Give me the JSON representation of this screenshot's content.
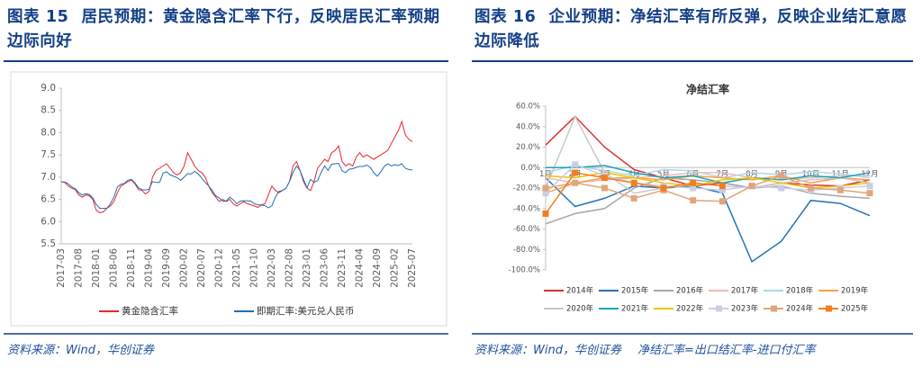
{
  "panels": [
    {
      "figure_label": "图表 15",
      "title": "居民预期：黄金隐含汇率下行，反映居民汇率预期边际向好",
      "source": "资料来源：Wind，华创证券"
    },
    {
      "figure_label": "图表 16",
      "title": "企业预期：净结汇率有所反弹，反映企业结汇意愿边际降低",
      "source": "资料来源：Wind，华创证券",
      "note": "净结汇率=出口结汇率-进口付汇率"
    }
  ],
  "chart_data": [
    {
      "type": "line",
      "categories": [
        "2017-03",
        null,
        null,
        null,
        null,
        "2017-08",
        null,
        null,
        null,
        null,
        "2018-01",
        null,
        null,
        null,
        null,
        "2018-06",
        null,
        null,
        null,
        null,
        "2018-11",
        null,
        null,
        null,
        null,
        "2019-04",
        null,
        null,
        null,
        null,
        "2019-09",
        null,
        null,
        null,
        null,
        "2020-02",
        null,
        null,
        null,
        null,
        "2020-07",
        null,
        null,
        null,
        null,
        "2020-12",
        null,
        null,
        null,
        null,
        "2021-05",
        null,
        null,
        null,
        null,
        "2021-10",
        null,
        null,
        null,
        null,
        "2022-03",
        null,
        null,
        null,
        null,
        "2022-08",
        null,
        null,
        null,
        null,
        "2023-01",
        null,
        null,
        null,
        null,
        "2023-06",
        null,
        null,
        null,
        null,
        "2023-11",
        null,
        null,
        null,
        null,
        "2024-04",
        null,
        null,
        null,
        null,
        "2024-09",
        null,
        null,
        null,
        null,
        "2025-02",
        null,
        null,
        null,
        null,
        "2025-07"
      ],
      "ylim": [
        5.5,
        9.0
      ],
      "yticks": [
        5.5,
        {
          "value": 6,
          "label": "6.0"
        },
        6.5,
        {
          "value": 7,
          "label": "7.0"
        },
        7.5,
        {
          "value": 8,
          "label": "8.0"
        },
        8.5,
        {
          "value": 9,
          "label": "9.0"
        }
      ],
      "series": [
        {
          "name": "黄金隐含汇率",
          "color": "#e8262a",
          "values": [
            6.9,
            6.88,
            6.8,
            6.75,
            6.72,
            6.6,
            6.55,
            6.6,
            6.58,
            6.5,
            6.25,
            6.2,
            6.22,
            6.3,
            6.35,
            6.45,
            6.65,
            6.8,
            6.85,
            6.9,
            6.93,
            6.85,
            6.72,
            6.7,
            6.62,
            6.68,
            7.0,
            7.15,
            7.2,
            7.25,
            7.3,
            7.2,
            7.1,
            7.05,
            7.1,
            7.25,
            7.55,
            7.4,
            7.25,
            7.15,
            7.1,
            7.0,
            6.8,
            6.65,
            6.55,
            6.45,
            6.5,
            6.45,
            6.5,
            6.4,
            6.35,
            6.4,
            6.45,
            6.4,
            6.38,
            6.35,
            6.32,
            6.38,
            6.4,
            6.6,
            6.8,
            6.7,
            6.65,
            6.7,
            6.75,
            6.9,
            7.25,
            7.35,
            7.15,
            6.9,
            6.75,
            6.7,
            6.9,
            7.2,
            7.3,
            7.4,
            7.35,
            7.55,
            7.6,
            7.7,
            7.35,
            7.25,
            7.3,
            7.25,
            7.45,
            7.55,
            7.45,
            7.5,
            7.45,
            7.4,
            7.45,
            7.5,
            7.55,
            7.6,
            7.75,
            7.9,
            8.05,
            8.25,
            7.95,
            7.85,
            7.8
          ]
        },
        {
          "name": "即期汇率:美元兑人民币",
          "color": "#1f6fb5",
          "values": [
            6.89,
            6.89,
            6.85,
            6.78,
            6.74,
            6.65,
            6.6,
            6.63,
            6.61,
            6.53,
            6.38,
            6.3,
            6.3,
            6.3,
            6.4,
            6.55,
            6.78,
            6.84,
            6.86,
            6.93,
            6.95,
            6.87,
            6.76,
            6.72,
            6.71,
            6.73,
            6.9,
            6.88,
            6.88,
            7.09,
            7.12,
            7.05,
            7.02,
            6.99,
            6.93,
            7.0,
            7.08,
            7.07,
            7.13,
            7.07,
            6.98,
            6.88,
            6.8,
            6.7,
            6.58,
            6.53,
            6.46,
            6.46,
            6.55,
            6.49,
            6.4,
            6.46,
            6.47,
            6.47,
            6.46,
            6.4,
            6.38,
            6.37,
            6.36,
            6.31,
            6.36,
            6.55,
            6.68,
            6.7,
            6.75,
            6.9,
            7.1,
            7.25,
            7.15,
            6.95,
            6.76,
            6.95,
            6.88,
            6.92,
            7.1,
            7.25,
            7.15,
            7.29,
            7.3,
            7.31,
            7.14,
            7.1,
            7.18,
            7.19,
            7.22,
            7.24,
            7.24,
            7.27,
            7.22,
            7.1,
            7.02,
            7.12,
            7.24,
            7.3,
            7.25,
            7.28,
            7.26,
            7.3,
            7.2,
            7.17,
            7.16
          ]
        }
      ]
    },
    {
      "type": "line",
      "title": "净结汇率",
      "categories": [
        "1月",
        "2月",
        "3月",
        "4月",
        "5月",
        "6月",
        "7月",
        "8月",
        "9月",
        "10月",
        "11月",
        "12月"
      ],
      "ylim": [
        -100,
        60
      ],
      "yticks": [
        {
          "value": -100,
          "label": "-100.0%"
        },
        {
          "value": -80,
          "label": "-80.0%"
        },
        {
          "value": -60,
          "label": "-60.0%"
        },
        {
          "value": -40,
          "label": "-40.0%"
        },
        {
          "value": -20,
          "label": "-20.0%"
        },
        {
          "value": 0,
          "label": "0.0%"
        },
        {
          "value": 20,
          "label": "20.0%"
        },
        {
          "value": 40,
          "label": "40.0%"
        },
        {
          "value": 60,
          "label": "60.0%"
        }
      ],
      "series": [
        {
          "name": "2014年",
          "color": "#d9322f",
          "values": [
            22,
            50,
            20,
            -2,
            -10,
            -18,
            -15,
            -20,
            -15,
            -17,
            -18,
            -12
          ]
        },
        {
          "name": "2015年",
          "color": "#2472b8",
          "values": [
            -10,
            -38,
            -30,
            -18,
            -20,
            -18,
            -25,
            -92,
            -72,
            -32,
            -35,
            -47
          ]
        },
        {
          "name": "2016年",
          "color": "#a6a6a6",
          "values": [
            -55,
            -45,
            -40,
            -20,
            -10,
            -12,
            -15,
            -20,
            -18,
            -25,
            -28,
            -30
          ]
        },
        {
          "name": "2017年",
          "color": "#f2b8b8",
          "values": [
            -10,
            -15,
            -12,
            -10,
            -8,
            -5,
            -5,
            -10,
            -12,
            -10,
            -8,
            -8
          ]
        },
        {
          "name": "2018年",
          "color": "#a9d8ea",
          "values": [
            -5,
            2,
            -3,
            -8,
            -2,
            -3,
            -10,
            -5,
            -7,
            -4,
            -6,
            -10
          ]
        },
        {
          "name": "2019年",
          "color": "#f5a04a",
          "values": [
            -25,
            -15,
            -10,
            -10,
            -12,
            -8,
            -10,
            -12,
            -8,
            -15,
            -10,
            -12
          ]
        },
        {
          "name": "2020年",
          "color": "#c8c8c8",
          "values": [
            -20,
            50,
            -5,
            -25,
            -20,
            -15,
            -18,
            -20,
            -15,
            -12,
            -10,
            -15
          ]
        },
        {
          "name": "2021年",
          "color": "#1aa3b8",
          "values": [
            0,
            0,
            2,
            -5,
            -10,
            -8,
            -15,
            -10,
            -12,
            -8,
            -10,
            -5
          ]
        },
        {
          "name": "2022年",
          "color": "#f2c400",
          "values": [
            -8,
            -10,
            -5,
            -10,
            -15,
            -18,
            -12,
            -10,
            -15,
            -20,
            -18,
            -15
          ]
        },
        {
          "name": "2023年",
          "color": "#c9cde8",
          "marker": "square",
          "values": [
            -25,
            3,
            -8,
            -15,
            -18,
            -20,
            -22,
            -18,
            -20,
            -22,
            -20,
            -18
          ]
        },
        {
          "name": "2024年",
          "color": "#e0a57a",
          "marker": "square",
          "values": [
            -20,
            -15,
            -20,
            -30,
            -22,
            -32,
            -33,
            -18,
            -8,
            -20,
            -22,
            -25
          ]
        },
        {
          "name": "2025年",
          "color": "#f07f22",
          "marker": "square",
          "values": [
            -45,
            -5,
            -10,
            -15,
            -20,
            -15,
            -18,
            null,
            null,
            null,
            null,
            null
          ]
        }
      ]
    }
  ]
}
